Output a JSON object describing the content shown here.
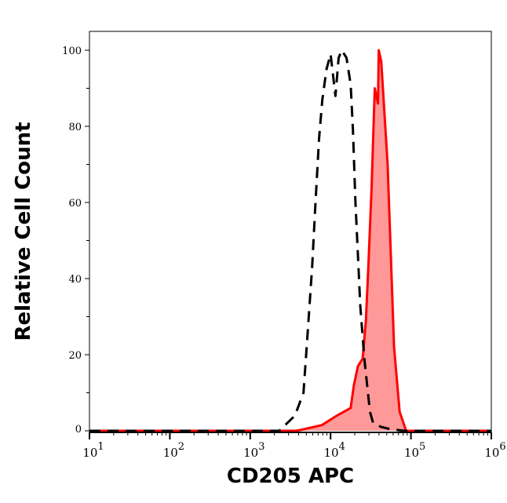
{
  "chart_data": {
    "type": "area",
    "title": "",
    "xlabel": "CD205 APC",
    "ylabel": "Relative Cell Count",
    "x_scale": "log",
    "xlim": [
      10,
      1000000
    ],
    "ylim": [
      0,
      100
    ],
    "x_ticks": [
      {
        "base": "10",
        "exp": "1"
      },
      {
        "base": "10",
        "exp": "2"
      },
      {
        "base": "10",
        "exp": "3"
      },
      {
        "base": "10",
        "exp": "4"
      },
      {
        "base": "10",
        "exp": "5"
      },
      {
        "base": "10",
        "exp": "6"
      }
    ],
    "y_ticks": [
      "0",
      "20",
      "40",
      "60",
      "80",
      "100"
    ],
    "grid": false,
    "series": [
      {
        "style": "dashed-line",
        "color": "#000000",
        "fill": "none",
        "x": [
          10,
          2300,
          3600,
          4600,
          5200,
          5900,
          6500,
          7200,
          7900,
          8900,
          10000,
          11500,
          12600,
          13800,
          15800,
          17800,
          19000,
          20400,
          21900,
          23400,
          26300,
          30900,
          33900,
          42700,
          53700,
          83200,
          1000000
        ],
        "y": [
          0,
          0,
          4,
          10,
          26,
          43,
          60,
          77,
          87,
          95,
          99,
          88,
          98,
          100,
          98,
          91,
          79,
          60,
          46,
          33,
          19,
          5,
          2,
          1,
          0.5,
          0,
          0
        ]
      },
      {
        "style": "solid-line",
        "color": "#ff0000",
        "fill": "#ff9999",
        "x": [
          10,
          3600,
          4200,
          7800,
          12000,
          17800,
          19500,
          21900,
          25100,
          27500,
          29500,
          32400,
          35500,
          38900,
          39800,
          42700,
          51300,
          61700,
          72400,
          87100,
          1000000
        ],
        "y": [
          0,
          0,
          0.2,
          1.5,
          4,
          6,
          12,
          17,
          19,
          29,
          43,
          64,
          90,
          86,
          100,
          97,
          70,
          22,
          5,
          0,
          0
        ]
      }
    ]
  }
}
